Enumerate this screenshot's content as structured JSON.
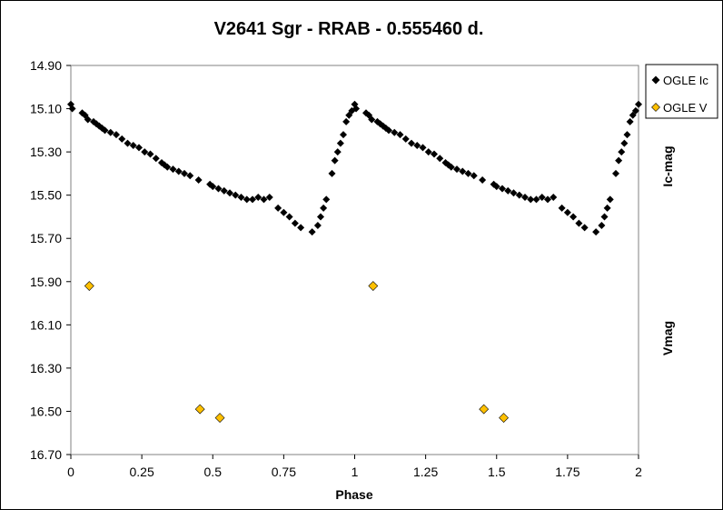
{
  "chart_data": {
    "type": "scatter",
    "title": "V2641 Sgr - RRAB - 0.555460 d.",
    "xlabel": "Phase",
    "ylabel_right_top": "Ic-mag",
    "ylabel_right_bottom": "Vmag",
    "xlim": [
      0,
      2
    ],
    "ylim": [
      14.9,
      16.7
    ],
    "y_inverted": true,
    "x_ticks": [
      "0",
      "0.25",
      "0.5",
      "0.75",
      "1",
      "1.25",
      "1.5",
      "1.75",
      "2"
    ],
    "y_ticks": [
      "14.90",
      "15.10",
      "15.30",
      "15.50",
      "15.70",
      "15.90",
      "16.10",
      "16.30",
      "16.50",
      "16.70"
    ],
    "grid": false,
    "legend_position": "top-right",
    "series": [
      {
        "name": "OGLE Ic",
        "color": "#000000",
        "marker": "diamond",
        "points": [
          [
            0.0,
            15.08
          ],
          [
            0.005,
            15.1
          ],
          [
            0.04,
            15.12
          ],
          [
            0.05,
            15.13
          ],
          [
            0.06,
            15.15
          ],
          [
            0.08,
            15.16
          ],
          [
            0.09,
            15.17
          ],
          [
            0.1,
            15.18
          ],
          [
            0.11,
            15.19
          ],
          [
            0.12,
            15.2
          ],
          [
            0.14,
            15.21
          ],
          [
            0.16,
            15.22
          ],
          [
            0.18,
            15.24
          ],
          [
            0.2,
            15.26
          ],
          [
            0.22,
            15.27
          ],
          [
            0.24,
            15.28
          ],
          [
            0.26,
            15.3
          ],
          [
            0.28,
            15.31
          ],
          [
            0.3,
            15.33
          ],
          [
            0.32,
            15.35
          ],
          [
            0.33,
            15.36
          ],
          [
            0.34,
            15.37
          ],
          [
            0.36,
            15.38
          ],
          [
            0.38,
            15.39
          ],
          [
            0.4,
            15.4
          ],
          [
            0.42,
            15.41
          ],
          [
            0.45,
            15.43
          ],
          [
            0.49,
            15.45
          ],
          [
            0.5,
            15.46
          ],
          [
            0.52,
            15.47
          ],
          [
            0.54,
            15.48
          ],
          [
            0.56,
            15.49
          ],
          [
            0.58,
            15.5
          ],
          [
            0.6,
            15.51
          ],
          [
            0.62,
            15.52
          ],
          [
            0.64,
            15.52
          ],
          [
            0.66,
            15.51
          ],
          [
            0.68,
            15.52
          ],
          [
            0.7,
            15.51
          ],
          [
            0.73,
            15.56
          ],
          [
            0.75,
            15.58
          ],
          [
            0.77,
            15.6
          ],
          [
            0.79,
            15.63
          ],
          [
            0.81,
            15.65
          ],
          [
            0.85,
            15.67
          ],
          [
            0.87,
            15.64
          ],
          [
            0.88,
            15.6
          ],
          [
            0.89,
            15.56
          ],
          [
            0.9,
            15.52
          ],
          [
            0.92,
            15.4
          ],
          [
            0.93,
            15.34
          ],
          [
            0.94,
            15.3
          ],
          [
            0.95,
            15.26
          ],
          [
            0.96,
            15.22
          ],
          [
            0.97,
            15.16
          ],
          [
            0.98,
            15.13
          ],
          [
            0.99,
            15.11
          ],
          [
            1.0,
            15.08
          ],
          [
            1.005,
            15.1
          ],
          [
            1.04,
            15.12
          ],
          [
            1.05,
            15.13
          ],
          [
            1.06,
            15.15
          ],
          [
            1.08,
            15.16
          ],
          [
            1.09,
            15.17
          ],
          [
            1.1,
            15.18
          ],
          [
            1.11,
            15.19
          ],
          [
            1.12,
            15.2
          ],
          [
            1.14,
            15.21
          ],
          [
            1.16,
            15.22
          ],
          [
            1.18,
            15.24
          ],
          [
            1.2,
            15.26
          ],
          [
            1.22,
            15.27
          ],
          [
            1.24,
            15.28
          ],
          [
            1.26,
            15.3
          ],
          [
            1.28,
            15.31
          ],
          [
            1.3,
            15.33
          ],
          [
            1.32,
            15.35
          ],
          [
            1.33,
            15.36
          ],
          [
            1.34,
            15.37
          ],
          [
            1.36,
            15.38
          ],
          [
            1.38,
            15.39
          ],
          [
            1.4,
            15.4
          ],
          [
            1.42,
            15.41
          ],
          [
            1.45,
            15.43
          ],
          [
            1.49,
            15.45
          ],
          [
            1.5,
            15.46
          ],
          [
            1.52,
            15.47
          ],
          [
            1.54,
            15.48
          ],
          [
            1.56,
            15.49
          ],
          [
            1.58,
            15.5
          ],
          [
            1.6,
            15.51
          ],
          [
            1.62,
            15.52
          ],
          [
            1.64,
            15.52
          ],
          [
            1.66,
            15.51
          ],
          [
            1.68,
            15.52
          ],
          [
            1.7,
            15.51
          ],
          [
            1.73,
            15.56
          ],
          [
            1.75,
            15.58
          ],
          [
            1.77,
            15.6
          ],
          [
            1.79,
            15.63
          ],
          [
            1.81,
            15.65
          ],
          [
            1.85,
            15.67
          ],
          [
            1.87,
            15.64
          ],
          [
            1.88,
            15.6
          ],
          [
            1.89,
            15.56
          ],
          [
            1.9,
            15.52
          ],
          [
            1.92,
            15.4
          ],
          [
            1.93,
            15.34
          ],
          [
            1.94,
            15.3
          ],
          [
            1.95,
            15.26
          ],
          [
            1.96,
            15.22
          ],
          [
            1.97,
            15.16
          ],
          [
            1.98,
            15.13
          ],
          [
            1.99,
            15.11
          ],
          [
            2.0,
            15.08
          ]
        ]
      },
      {
        "name": "OGLE V",
        "color": "#ffc000",
        "marker": "diamond",
        "points": [
          [
            0.065,
            15.92
          ],
          [
            0.455,
            16.49
          ],
          [
            0.525,
            16.53
          ],
          [
            1.065,
            15.92
          ],
          [
            1.455,
            16.49
          ],
          [
            1.525,
            16.53
          ]
        ]
      }
    ]
  }
}
